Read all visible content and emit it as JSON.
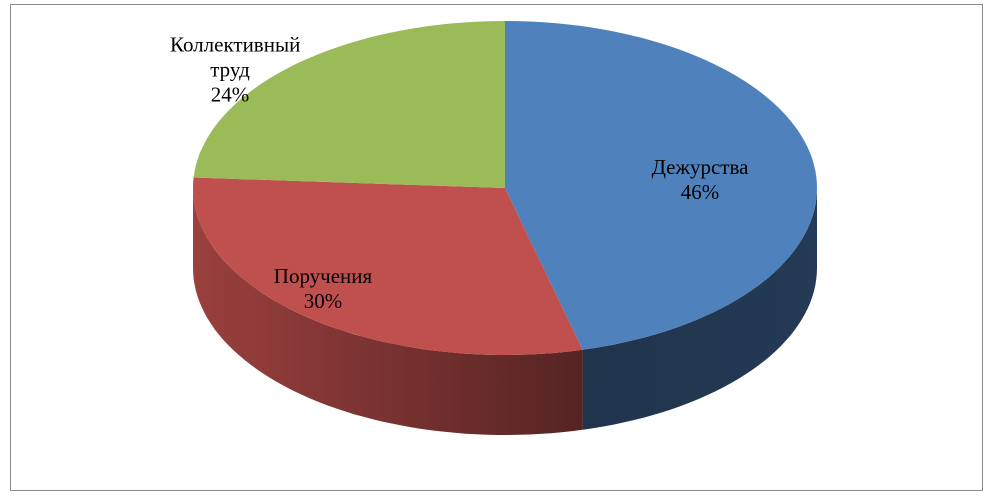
{
  "chart_data": {
    "type": "pie",
    "categories": [
      "Дежурства",
      "Поручения",
      "Коллективный труд"
    ],
    "values": [
      46,
      30,
      24
    ],
    "value_labels": [
      "46%",
      "30%",
      "24%"
    ],
    "colors": [
      "#4f81bd",
      "#c0504d",
      "#9bbb59"
    ],
    "three_d": true
  }
}
